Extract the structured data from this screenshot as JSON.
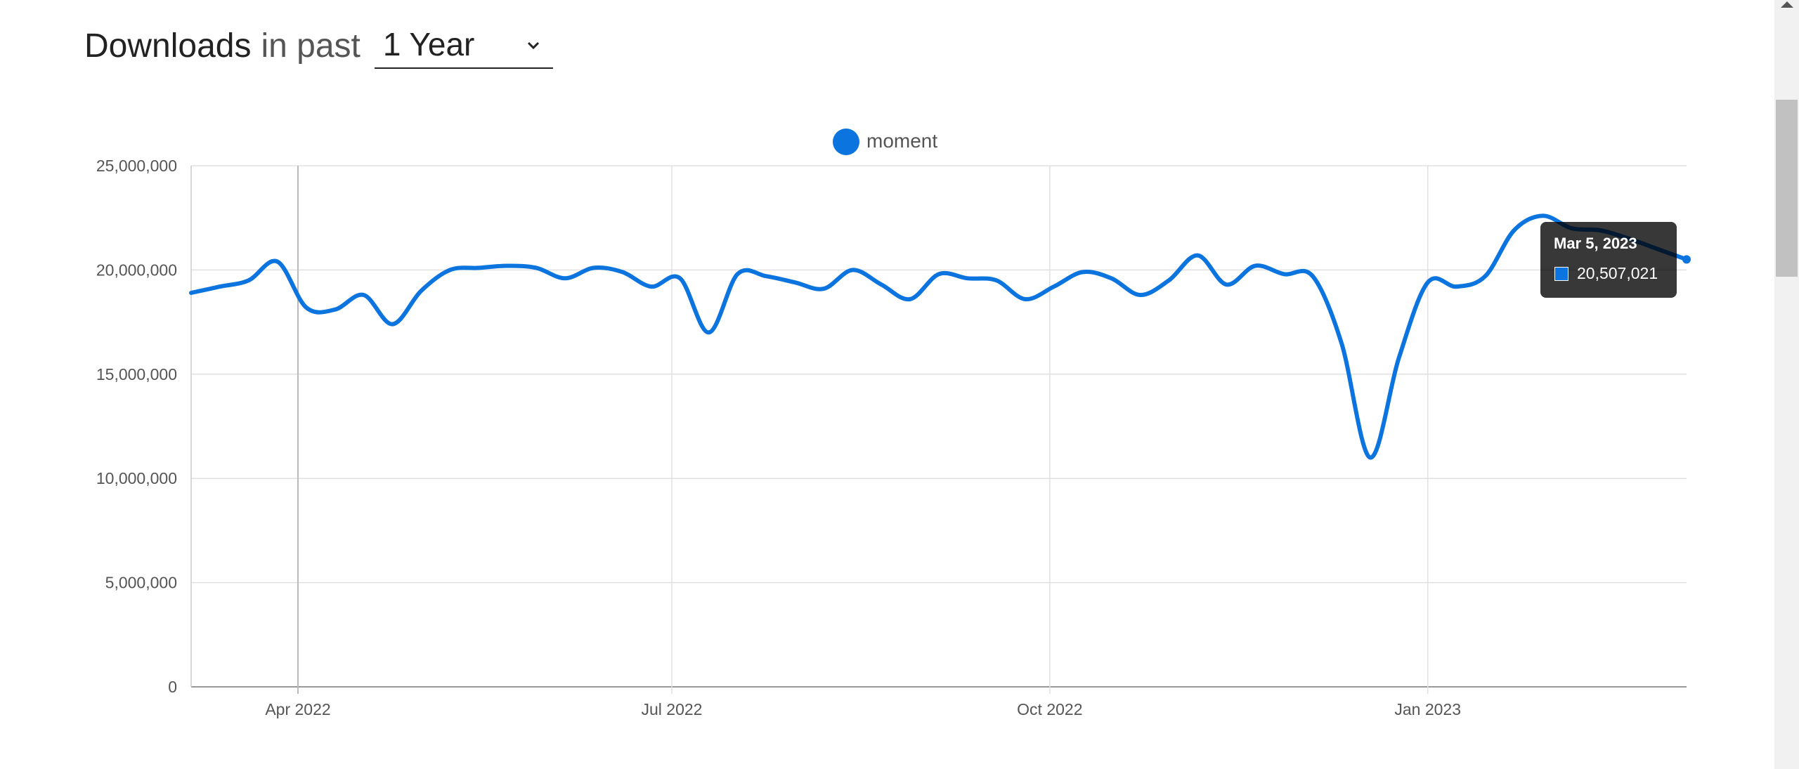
{
  "header": {
    "title_strong": "Downloads",
    "title_light": "in past",
    "period_selected": "1 Year"
  },
  "tooltip": {
    "date": "Mar 5, 2023",
    "value": "20,507,021"
  },
  "chart_data": {
    "type": "line",
    "title": "",
    "xlabel": "",
    "ylabel": "",
    "ylim": [
      0,
      25000000
    ],
    "yticks": [
      0,
      5000000,
      10000000,
      15000000,
      20000000,
      25000000
    ],
    "ytick_labels": [
      "0",
      "5,000,000",
      "10,000,000",
      "15,000,000",
      "20,000,000",
      "25,000,000"
    ],
    "xlim": [
      "2022-03-06",
      "2023-03-05"
    ],
    "xticks": [
      "2022-04-01",
      "2022-07-01",
      "2022-10-01",
      "2023-01-01"
    ],
    "xtick_labels": [
      "Apr 2022",
      "Jul 2022",
      "Oct 2022",
      "Jan 2023"
    ],
    "grid": true,
    "legend": "top-center",
    "series": [
      {
        "name": "moment",
        "color": "#0b74de",
        "x": [
          "2022-03-06",
          "2022-03-13",
          "2022-03-20",
          "2022-03-27",
          "2022-04-03",
          "2022-04-10",
          "2022-04-17",
          "2022-04-24",
          "2022-05-01",
          "2022-05-08",
          "2022-05-15",
          "2022-05-22",
          "2022-05-29",
          "2022-06-05",
          "2022-06-12",
          "2022-06-19",
          "2022-06-26",
          "2022-07-03",
          "2022-07-10",
          "2022-07-17",
          "2022-07-24",
          "2022-07-31",
          "2022-08-07",
          "2022-08-14",
          "2022-08-21",
          "2022-08-28",
          "2022-09-04",
          "2022-09-11",
          "2022-09-18",
          "2022-09-25",
          "2022-10-02",
          "2022-10-09",
          "2022-10-16",
          "2022-10-23",
          "2022-10-30",
          "2022-11-06",
          "2022-11-13",
          "2022-11-20",
          "2022-11-27",
          "2022-12-04",
          "2022-12-11",
          "2022-12-18",
          "2022-12-25",
          "2023-01-01",
          "2023-01-08",
          "2023-01-15",
          "2023-01-22",
          "2023-01-29",
          "2023-02-05",
          "2023-02-12",
          "2023-02-19",
          "2023-02-26",
          "2023-03-05"
        ],
        "values": [
          18900000,
          19200000,
          19500000,
          20400000,
          18200000,
          18100000,
          18800000,
          17400000,
          19000000,
          20000000,
          20100000,
          20200000,
          20100000,
          19600000,
          20100000,
          19900000,
          19200000,
          19600000,
          17000000,
          19800000,
          19700000,
          19400000,
          19100000,
          20000000,
          19300000,
          18600000,
          19800000,
          19600000,
          19500000,
          18600000,
          19200000,
          19900000,
          19600000,
          18800000,
          19500000,
          20700000,
          19300000,
          20200000,
          19800000,
          19700000,
          16500000,
          11000000,
          15800000,
          19400000,
          19200000,
          19700000,
          21900000,
          22600000,
          22000000,
          21900000,
          21500000,
          21000000,
          20507021
        ]
      }
    ]
  }
}
